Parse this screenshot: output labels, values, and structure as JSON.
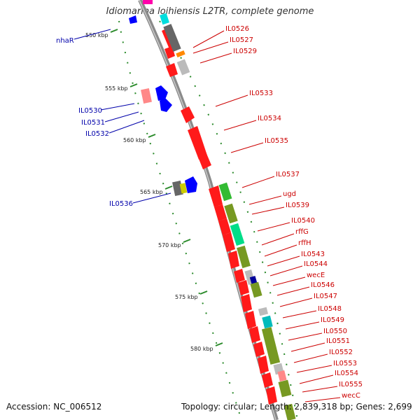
{
  "title": "Idiomarina loihiensis L2TR, complete genome",
  "accession": "Accession: NC_006512",
  "topology": "Topology: circular; Length: 2,839,318 bp; Genes: 2,699",
  "colors": {
    "forward": "#ff0000",
    "reverse": "#0000ff",
    "forward_label": "#cc0000",
    "reverse_label": "#0000aa",
    "backbone": "#999999",
    "ticks": "#2a8a2a"
  },
  "scale_ticks": [
    "550 kbp",
    "555 kbp",
    "560 kbp",
    "565 kbp",
    "570 kbp",
    "575 kbp",
    "580 kbp"
  ],
  "forward_genes": [
    "IL0526",
    "IL0527",
    "IL0529",
    "IL0533",
    "IL0534",
    "IL0535",
    "IL0537",
    "ugd",
    "IL0539",
    "IL0540",
    "rffG",
    "rffH",
    "IL0543",
    "IL0544",
    "wecE",
    "IL0546",
    "IL0547",
    "IL0548",
    "IL0549",
    "IL0550",
    "IL0551",
    "IL0552",
    "IL0553",
    "IL0554",
    "IL0555",
    "wecC"
  ],
  "reverse_genes": [
    "nhaR",
    "IL0530",
    "IL0531",
    "IL0532",
    "IL0536"
  ]
}
